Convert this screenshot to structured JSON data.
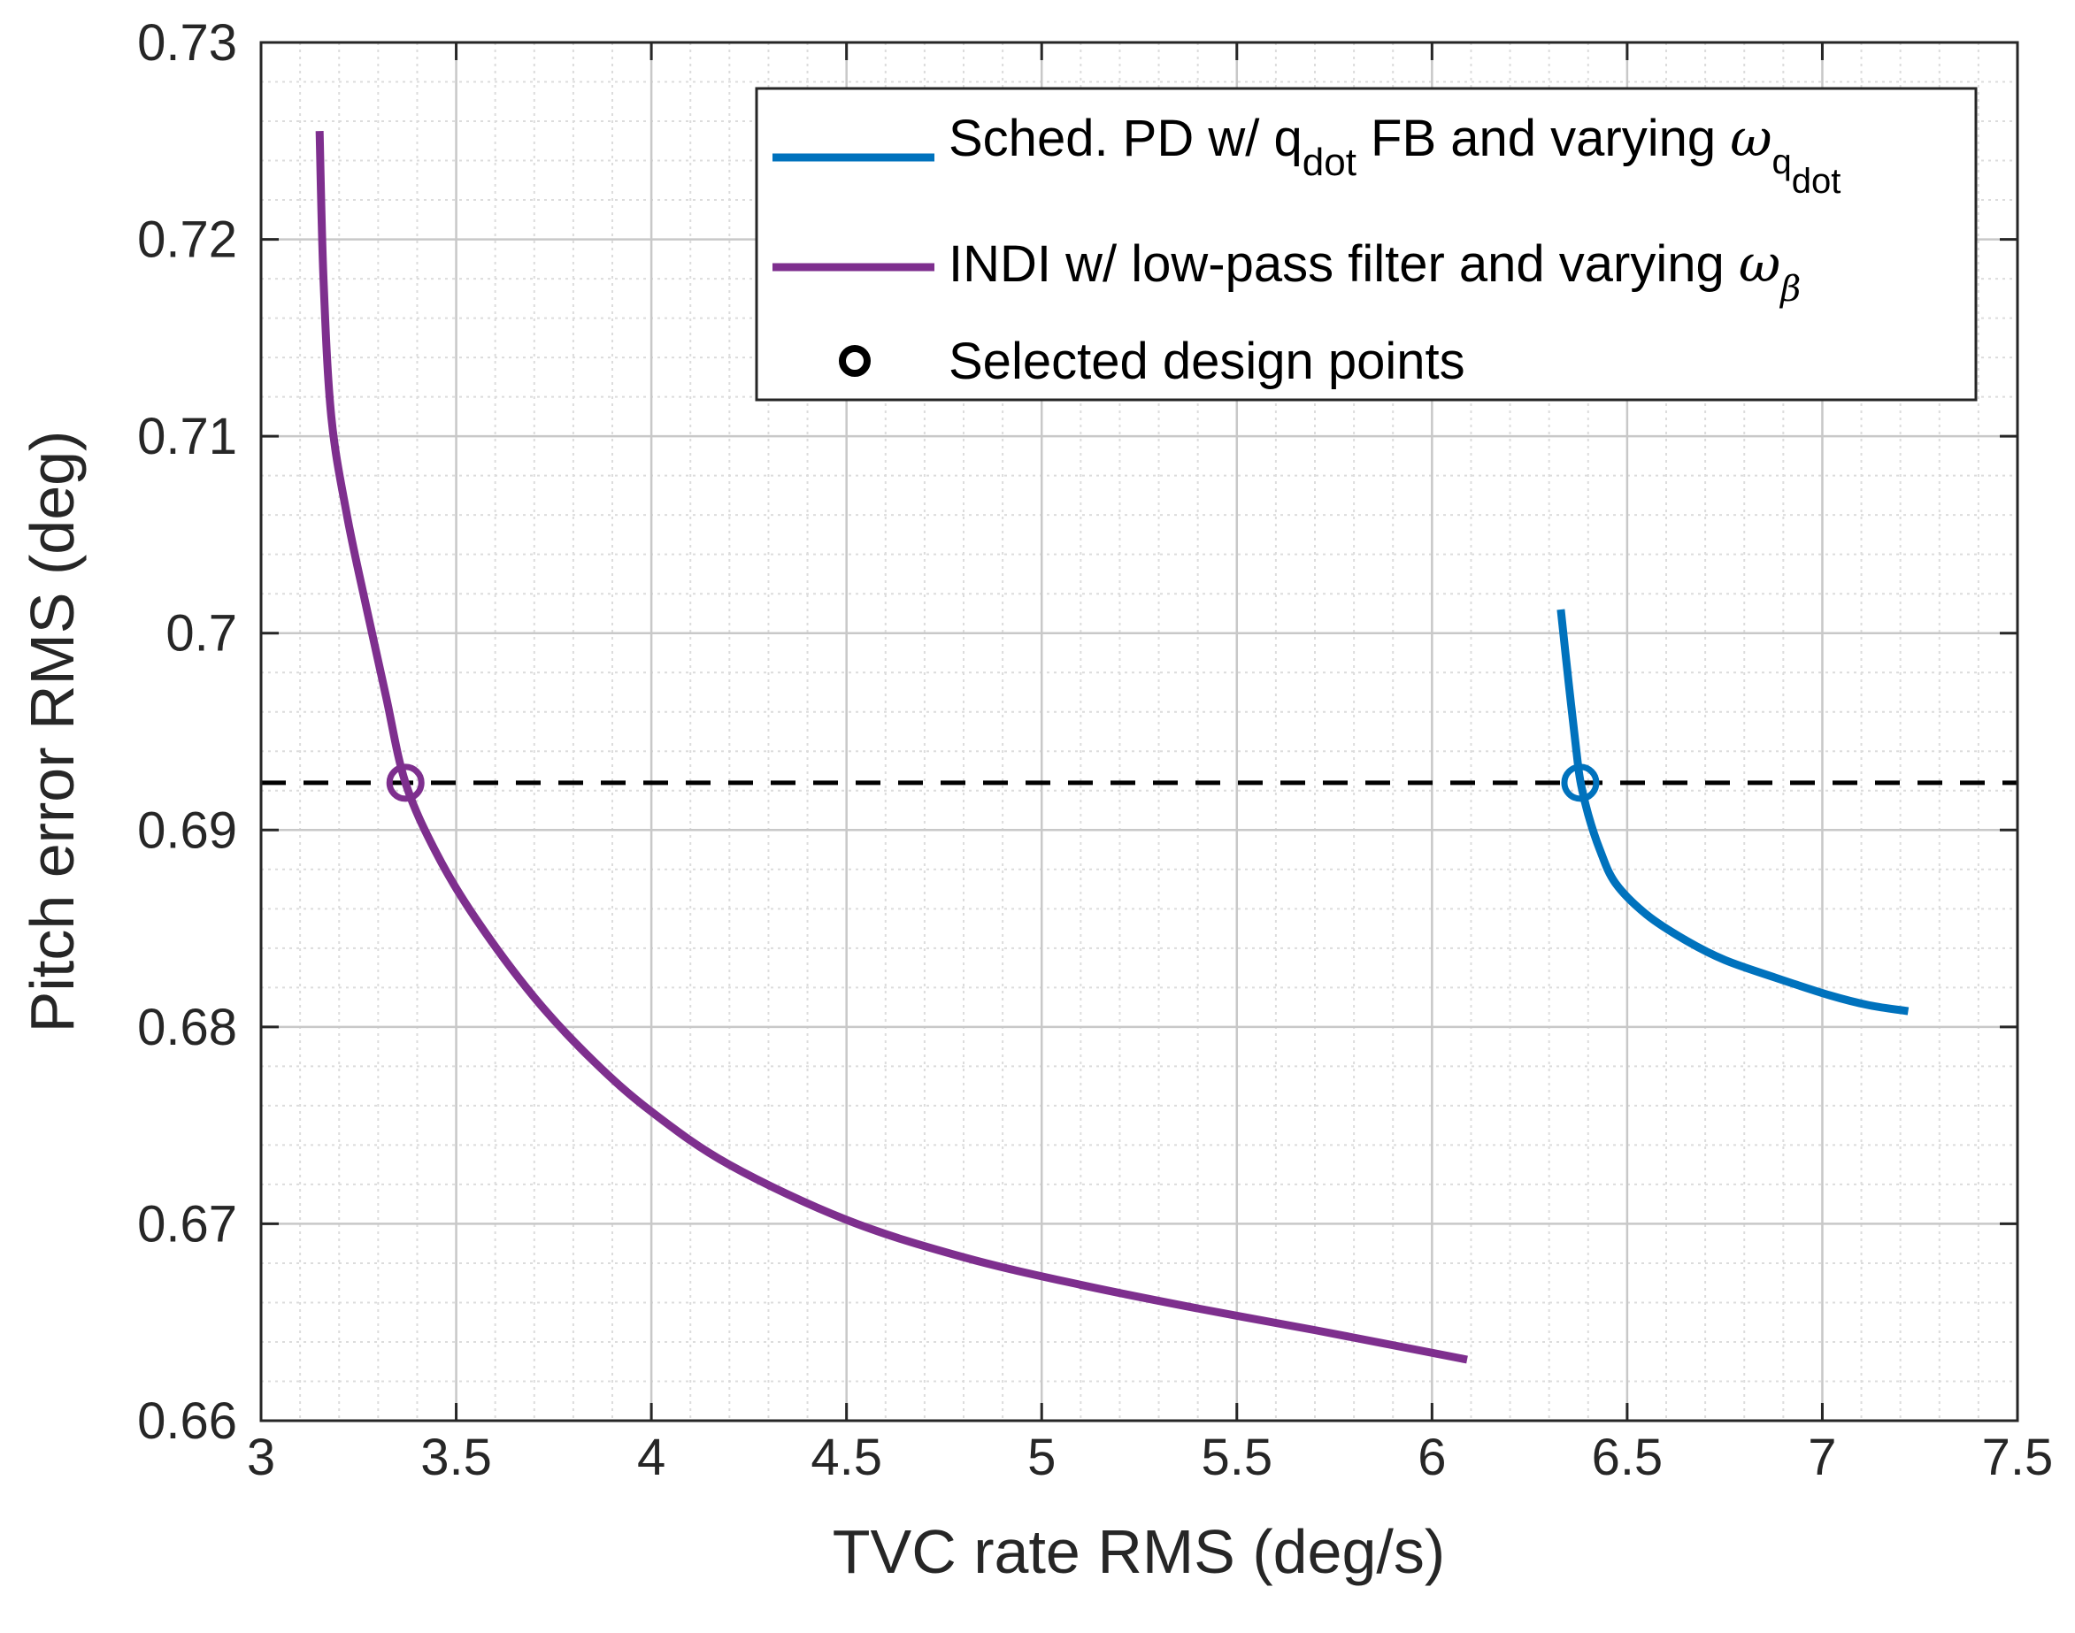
{
  "chart_data": {
    "type": "line",
    "xlabel": "TVC rate RMS (deg/s)",
    "ylabel": "Pitch error RMS (deg)",
    "xlim": [
      3,
      7.5
    ],
    "ylim": [
      0.66,
      0.73
    ],
    "x_ticks": [
      "3",
      "3.5",
      "4",
      "4.5",
      "5",
      "5.5",
      "6",
      "6.5",
      "7",
      "7.5"
    ],
    "y_ticks": [
      "0.66",
      "0.67",
      "0.68",
      "0.69",
      "0.7",
      "0.71",
      "0.72",
      "0.73"
    ],
    "grid": true,
    "minor_grid": true,
    "legend_position": "top-right",
    "reference_line": {
      "y": 0.6924,
      "style": "dashed",
      "color": "#000000"
    },
    "series": [
      {
        "name": "Sched. PD w/ q_dot FB and varying ω_q_dot",
        "color": "#0072BD",
        "x": [
          6.33,
          6.35,
          6.37,
          6.38,
          6.4,
          6.43,
          6.47,
          6.55,
          6.65,
          6.75,
          6.88,
          7.02,
          7.12,
          7.22
        ],
        "y": [
          0.7012,
          0.6975,
          0.694,
          0.6925,
          0.6908,
          0.689,
          0.6873,
          0.6857,
          0.6844,
          0.6834,
          0.6825,
          0.6816,
          0.6811,
          0.6808
        ]
      },
      {
        "name": "INDI w/ low-pass filter and varying ω_β",
        "color": "#7E2F8E",
        "x": [
          3.15,
          3.16,
          3.18,
          3.22,
          3.27,
          3.32,
          3.37,
          3.45,
          3.55,
          3.7,
          3.85,
          4.0,
          4.2,
          4.5,
          4.8,
          5.1,
          5.4,
          5.7,
          6.09
        ],
        "y": [
          0.7255,
          0.718,
          0.711,
          0.706,
          0.7013,
          0.6968,
          0.6924,
          0.6888,
          0.6855,
          0.6815,
          0.6783,
          0.6757,
          0.673,
          0.6702,
          0.6683,
          0.6669,
          0.6657,
          0.6646,
          0.6631
        ]
      }
    ],
    "design_points": [
      {
        "label": "INDI",
        "x": 3.37,
        "y": 0.6924,
        "color": "#7E2F8E"
      },
      {
        "label": "Sched. PD",
        "x": 6.38,
        "y": 0.6924,
        "color": "#0072BD"
      }
    ],
    "legend": {
      "pd": {
        "main": "Sched. PD w/ q",
        "sub1": "dot",
        "rest": " FB and varying ",
        "sym": "ω",
        "sym_sub": "q",
        "sym_subsub": "dot"
      },
      "indi": {
        "main": "INDI w/ low-pass filter and varying ",
        "sym": "ω",
        "sym_sub": "β"
      },
      "points": {
        "main": "Selected design points"
      }
    }
  }
}
